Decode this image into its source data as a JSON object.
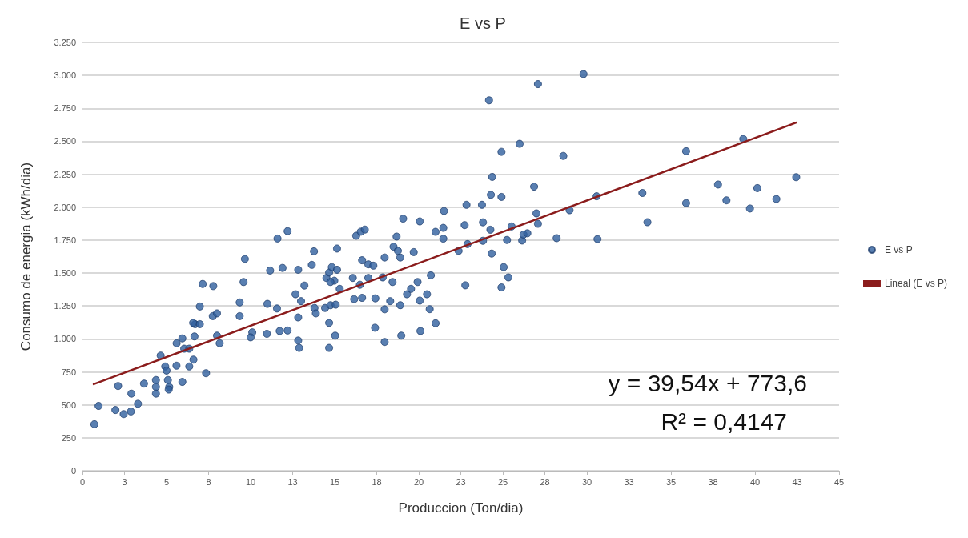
{
  "chart_data": {
    "type": "scatter",
    "title": "E vs P",
    "xlabel": "Produccion (Ton/dia)",
    "ylabel": "Consumo de energia (kWh/dia)",
    "annotations": [
      "y = 39,54x + 773,6",
      "R² = 0,4147"
    ],
    "series": [
      {
        "name": "E vs P",
        "color": "#2f5f9e",
        "marker": "circle",
        "x": [
          0.71,
          0.96,
          1.96,
          2.12,
          2.45,
          2.88,
          2.91,
          3.3,
          3.66,
          4.37,
          4.37,
          4.37,
          4.65,
          4.92,
          5.0,
          5.08,
          5.16,
          5.13,
          5.59,
          5.6,
          5.94,
          5.94,
          6.05,
          6.35,
          6.35,
          6.6,
          6.66,
          6.7,
          6.58,
          6.98,
          6.98,
          7.35,
          7.15,
          7.78,
          7.75,
          8.0,
          8.0,
          8.16,
          9.35,
          9.35,
          9.58,
          9.66,
          10.1,
          10.0,
          10.97,
          11.0,
          11.16,
          11.57,
          11.6,
          11.73,
          11.9,
          12.2,
          12.2,
          12.83,
          12.83,
          12.83,
          12.89,
          12.67,
          13.0,
          13.2,
          13.64,
          13.77,
          13.8,
          13.88,
          14.51,
          14.67,
          14.83,
          14.98,
          15.14,
          14.75,
          14.43,
          14.75,
          15.06,
          14.67,
          14.67,
          15.03,
          15.14,
          15.3,
          16.08,
          16.16,
          16.63,
          16.28,
          16.55,
          16.79,
          16.63,
          17.0,
          17.3,
          16.5,
          17.0,
          17.42,
          17.4,
          17.86,
          17.97,
          17.97,
          17.97,
          18.3,
          18.44,
          18.68,
          18.5,
          18.76,
          18.9,
          18.9,
          18.96,
          19.07,
          19.3,
          19.54,
          19.7,
          19.93,
          20.06,
          20.06,
          20.1,
          20.72,
          20.65,
          21.0,
          20.49,
          21.0,
          21.46,
          21.46,
          21.5,
          22.37,
          22.77,
          22.73,
          22.84,
          22.9,
          23.76,
          23.82,
          23.82,
          24.26,
          24.34,
          24.18,
          24.37,
          24.29,
          24.92,
          24.92,
          25.05,
          25.33,
          24.92,
          25.25,
          25.52,
          26.15,
          26.23,
          26.0,
          26.46,
          26.86,
          27.0,
          27.09,
          27.09,
          28.2,
          28.6,
          28.97,
          29.8,
          30.58,
          30.63,
          33.3,
          33.6,
          35.9,
          35.9,
          37.8,
          38.3,
          39.3,
          39.7,
          40.14,
          41.27,
          42.45
        ],
        "values": [
          353,
          492,
          461,
          643,
          430,
          450,
          585,
          508,
          661,
          688,
          636,
          585,
          874,
          791,
          760,
          688,
          636,
          616,
          797,
          967,
          674,
          1004,
          926,
          926,
          791,
          843,
          1019,
          1112,
          1122,
          1112,
          1246,
          740,
          1417,
          1401,
          1173,
          1194,
          1025,
          967,
          1277,
          1173,
          1432,
          1607,
          1050,
          1012,
          1039,
          1266,
          1519,
          1231,
          1762,
          1060,
          1539,
          1064,
          1818,
          1525,
          1163,
          988,
          932,
          1339,
          1287,
          1405,
          1562,
          1665,
          1235,
          1194,
          1463,
          1504,
          1545,
          1442,
          1525,
          1432,
          1235,
          1256,
          1260,
          1122,
          932,
          1025,
          1686,
          1380,
          1463,
          1302,
          1312,
          1783,
          1814,
          1830,
          1597,
          1566,
          1556,
          1411,
          1463,
          1308,
          1085,
          1467,
          1618,
          1225,
          977,
          1287,
          1432,
          1777,
          1700,
          1669,
          1618,
          1256,
          1025,
          1913,
          1339,
          1380,
          1659,
          1432,
          1892,
          1291,
          1060,
          1483,
          1226,
          1119,
          1339,
          1813,
          1843,
          1761,
          1971,
          1668,
          1407,
          1864,
          2018,
          1720,
          2018,
          1885,
          1745,
          1829,
          1648,
          2811,
          2230,
          2094,
          2078,
          2420,
          1545,
          1467,
          1391,
          1751,
          1854,
          1747,
          1792,
          2481,
          1802,
          2156,
          1953,
          1874,
          2934,
          1765,
          2389,
          1977,
          3010,
          2083,
          1758,
          2108,
          1886,
          2425,
          2031,
          2172,
          2052,
          2518,
          1990,
          2145,
          2062,
          2228
        ]
      },
      {
        "name": "Lineal (E vs P)",
        "type": "line",
        "color": "#8b1c1c",
        "marker": "none",
        "x": [
          0.67,
          42.45
        ],
        "values": [
          657,
          2642
        ]
      }
    ],
    "xlim": [
      0,
      45
    ],
    "xticks": [
      0,
      {
        "value": 2.5,
        "label": "3"
      },
      5,
      {
        "value": 7.5,
        "label": "8"
      },
      10,
      {
        "value": 12.5,
        "label": "13"
      },
      15,
      {
        "value": 17.5,
        "label": "18"
      },
      20,
      {
        "value": 22.5,
        "label": "23"
      },
      25,
      {
        "value": 27.5,
        "label": "28"
      },
      30,
      {
        "value": 32.5,
        "label": "33"
      },
      35,
      {
        "value": 37.5,
        "label": "38"
      },
      40,
      {
        "value": 42.5,
        "label": "43"
      },
      45
    ],
    "ylim": [
      0,
      3250
    ],
    "yticks": [
      0,
      250,
      500,
      750,
      {
        "value": 1000,
        "label": "1.000"
      },
      {
        "value": 1250,
        "label": "1.250"
      },
      {
        "value": 1500,
        "label": "1.500"
      },
      {
        "value": 1750,
        "label": "1.750"
      },
      {
        "value": 2000,
        "label": "2.000"
      },
      {
        "value": 2250,
        "label": "2.250"
      },
      {
        "value": 2500,
        "label": "2.500"
      },
      {
        "value": 2750,
        "label": "2.750"
      },
      {
        "value": 3000,
        "label": "3.000"
      },
      {
        "value": 3250,
        "label": "3.250"
      }
    ],
    "grid": "y",
    "legend": "right",
    "line_style": "solid"
  }
}
